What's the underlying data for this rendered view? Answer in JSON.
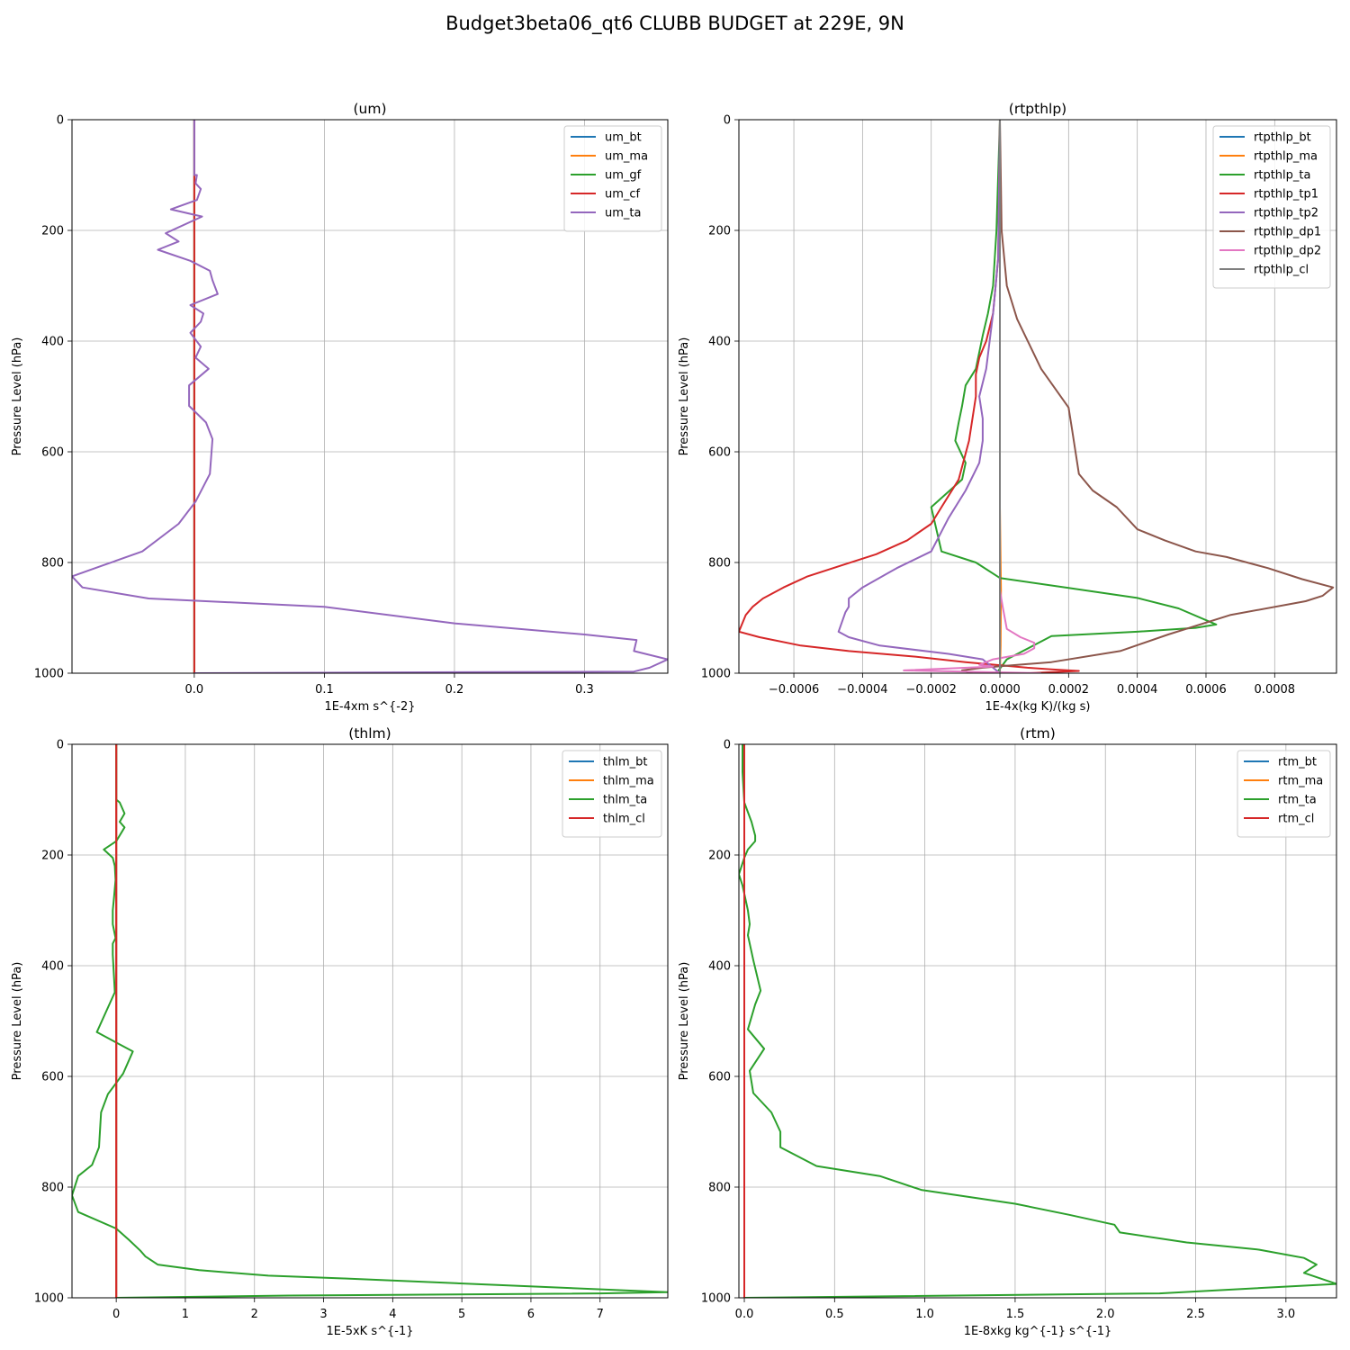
{
  "figure": {
    "title": "Budget3beta06_qt6 CLUBB BUDGET at 229E, 9N"
  },
  "chart_data": [
    {
      "type": "line",
      "title": "(um)",
      "xlabel": "1E-4xm s^{-2}",
      "ylabel": "Pressure Level (hPa)",
      "xlim": [
        -0.094,
        0.364
      ],
      "ylim": [
        1000,
        0
      ],
      "xticks": [
        0.0,
        0.1,
        0.2,
        0.3
      ],
      "xtick_labels": [
        "0.0",
        "0.1",
        "0.2",
        "0.3"
      ],
      "yticks": [
        0,
        200,
        400,
        600,
        800,
        1000
      ],
      "ytick_labels": [
        "0",
        "200",
        "400",
        "600",
        "800",
        "1000"
      ],
      "grid": true,
      "legend_position": "top-right",
      "colors": {
        "um_bt": "#1f77b4",
        "um_ma": "#ff7f0e",
        "um_gf": "#2ca02c",
        "um_cf": "#d62728",
        "um_ta": "#9467bd"
      },
      "series": [
        {
          "name": "um_bt",
          "x": [
            0,
            0
          ],
          "y": [
            0,
            1000
          ]
        },
        {
          "name": "um_ma",
          "x": [
            0,
            0
          ],
          "y": [
            0,
            1000
          ]
        },
        {
          "name": "um_gf",
          "x": [
            0,
            0
          ],
          "y": [
            0,
            1000
          ]
        },
        {
          "name": "um_cf",
          "x": [
            0,
            0
          ],
          "y": [
            0,
            1000
          ]
        },
        {
          "name": "um_ta",
          "x": [
            0.0,
            0.0,
            0.0,
            0.002,
            0.001,
            0.005,
            0.002,
            -0.018,
            0.006,
            -0.022,
            -0.012,
            -0.028,
            -0.003,
            0.012,
            0.014,
            0.018,
            -0.003,
            0.007,
            0.005,
            -0.003,
            0.005,
            0.001,
            0.011,
            -0.004,
            -0.004,
            0.009,
            0.014,
            0.012,
            0.001,
            -0.012,
            -0.04,
            -0.07,
            -0.094,
            -0.086,
            -0.035,
            0.1,
            0.2,
            0.3,
            0.34,
            0.338,
            0.364,
            0.35,
            0.338,
            0.0
          ],
          "y": [
            0,
            50,
            100,
            100,
            115,
            125,
            145,
            162,
            175,
            205,
            220,
            235,
            255,
            273,
            290,
            315,
            335,
            350,
            365,
            385,
            410,
            430,
            450,
            480,
            517,
            547,
            577,
            640,
            690,
            730,
            780,
            805,
            825,
            845,
            865,
            880,
            910,
            930,
            940,
            960,
            975,
            990,
            997,
            1000
          ]
        }
      ]
    },
    {
      "type": "line",
      "title": "(rtpthlp)",
      "xlabel": "1E-4x(kg K)/(kg s)",
      "ylabel": "Pressure Level (hPa)",
      "xlim": [
        -0.00076,
        0.00098
      ],
      "ylim": [
        1000,
        0
      ],
      "xticks": [
        -0.0006,
        -0.0004,
        -0.0002,
        0.0,
        0.0002,
        0.0004,
        0.0006,
        0.0008
      ],
      "xtick_labels": [
        "−0.0006",
        "−0.0004",
        "−0.0002",
        "0.0000",
        "0.0002",
        "0.0004",
        "0.0006",
        "0.0008"
      ],
      "yticks": [
        0,
        200,
        400,
        600,
        800,
        1000
      ],
      "ytick_labels": [
        "0",
        "200",
        "400",
        "600",
        "800",
        "1000"
      ],
      "grid": true,
      "legend_position": "top-right",
      "colors": {
        "rtpthlp_bt": "#1f77b4",
        "rtpthlp_ma": "#ff7f0e",
        "rtpthlp_ta": "#2ca02c",
        "rtpthlp_tp1": "#d62728",
        "rtpthlp_tp2": "#9467bd",
        "rtpthlp_dp1": "#8c564b",
        "rtpthlp_dp2": "#e377c2",
        "rtpthlp_cl": "#7f7f7f"
      },
      "series": [
        {
          "name": "rtpthlp_bt",
          "x": [
            0,
            0
          ],
          "y": [
            0,
            1000
          ]
        },
        {
          "name": "rtpthlp_ma",
          "x": [
            0,
            0,
            3e-06,
            2e-06,
            0
          ],
          "y": [
            0,
            700,
            850,
            950,
            1000
          ]
        },
        {
          "name": "rtpthlp_ta",
          "x": [
            0.0,
            -5e-06,
            -1e-05,
            -2e-05,
            -3.5e-05,
            -5e-05,
            -6e-05,
            -7e-05,
            -0.0001,
            -0.00011,
            -0.00012,
            -0.00013,
            -0.0001,
            -0.00011,
            -0.0002,
            -0.00017,
            -7e-05,
            0.0,
            0.0002,
            0.0004,
            0.00052,
            0.00063,
            0.00057,
            0.0004,
            0.00015,
            2e-05,
            -1e-05
          ],
          "y": [
            0,
            100,
            200,
            300,
            350,
            390,
            420,
            450,
            480,
            517,
            547,
            580,
            620,
            650,
            700,
            780,
            800,
            828,
            846,
            864,
            883,
            912,
            918,
            925,
            933,
            975,
            1000
          ]
        },
        {
          "name": "rtpthlp_tp1",
          "x": [
            0.0,
            -5e-06,
            -2e-05,
            -4e-05,
            -6e-05,
            -7e-05,
            -7e-05,
            -9e-05,
            -0.00012,
            -0.00017,
            -0.0002,
            -0.00027,
            -0.00036,
            -0.00046,
            -0.00056,
            -0.00063,
            -0.00069,
            -0.00072,
            -0.00074,
            -0.00076,
            -0.0007,
            -0.00058,
            -0.00044,
            -0.00025,
            -0.0001,
            8e-05,
            0.00015,
            0.00023,
            8e-05
          ],
          "y": [
            0,
            250,
            350,
            400,
            430,
            460,
            500,
            580,
            650,
            700,
            730,
            760,
            785,
            805,
            825,
            845,
            865,
            880,
            895,
            925,
            935,
            950,
            960,
            970,
            980,
            990,
            993,
            996,
            1000
          ]
        },
        {
          "name": "rtpthlp_tp2",
          "x": [
            0.0,
            -5e-06,
            -2e-05,
            -3e-05,
            -4e-05,
            -6e-05,
            -5e-05,
            -5e-05,
            -6e-05,
            -0.0001,
            -0.00015,
            -0.0002,
            -0.0003,
            -0.0004,
            -0.00044,
            -0.00044,
            -0.00045,
            -0.00047,
            -0.00044,
            -0.00035,
            -0.00015,
            -5e-05,
            0.0
          ],
          "y": [
            0,
            250,
            350,
            400,
            450,
            500,
            540,
            580,
            620,
            670,
            720,
            780,
            810,
            845,
            865,
            880,
            890,
            925,
            935,
            950,
            965,
            975,
            1000
          ]
        },
        {
          "name": "rtpthlp_dp1",
          "x": [
            0.0,
            5e-06,
            2e-05,
            5e-05,
            0.00012,
            0.0002,
            0.00021,
            0.00022,
            0.00023,
            0.00027,
            0.00034,
            0.0004,
            0.00048,
            0.00057,
            0.00066,
            0.00078,
            0.00088,
            0.00097,
            0.00094,
            0.00089,
            0.00067,
            0.00049,
            0.00035,
            0.00015,
            -5e-05,
            -0.00011,
            -8e-05
          ],
          "y": [
            0,
            200,
            300,
            360,
            450,
            520,
            560,
            600,
            640,
            670,
            700,
            740,
            760,
            780,
            790,
            810,
            830,
            845,
            860,
            870,
            895,
            930,
            960,
            980,
            990,
            995,
            1000
          ]
        },
        {
          "name": "rtpthlp_dp2",
          "x": [
            0.0,
            0.0,
            8e-06,
            2e-05,
            6e-05,
            0.0001,
            0.0001,
            7e-05,
            -2e-05,
            -6e-05,
            -2e-05,
            -0.00028,
            0.00012
          ],
          "y": [
            0,
            850,
            880,
            920,
            935,
            945,
            955,
            965,
            975,
            985,
            988,
            995,
            1000
          ]
        },
        {
          "name": "rtpthlp_cl",
          "x": [
            0,
            0
          ],
          "y": [
            0,
            1000
          ]
        }
      ]
    },
    {
      "type": "line",
      "title": "(thlm)",
      "xlabel": "1E-5xK s^{-1}",
      "ylabel": "Pressure Level (hPa)",
      "xlim": [
        -0.64,
        7.98
      ],
      "ylim": [
        1000,
        0
      ],
      "xticks": [
        0,
        1,
        2,
        3,
        4,
        5,
        6,
        7
      ],
      "xtick_labels": [
        "0",
        "1",
        "2",
        "3",
        "4",
        "5",
        "6",
        "7"
      ],
      "yticks": [
        0,
        200,
        400,
        600,
        800,
        1000
      ],
      "ytick_labels": [
        "0",
        "200",
        "400",
        "600",
        "800",
        "1000"
      ],
      "grid": true,
      "legend_position": "top-right",
      "colors": {
        "thlm_bt": "#1f77b4",
        "thlm_ma": "#ff7f0e",
        "thlm_ta": "#2ca02c",
        "thlm_cl": "#d62728"
      },
      "series": [
        {
          "name": "thlm_bt",
          "x": [
            0,
            0
          ],
          "y": [
            0,
            1000
          ]
        },
        {
          "name": "thlm_ma",
          "x": [
            0,
            0
          ],
          "y": [
            0,
            1000
          ]
        },
        {
          "name": "thlm_ta",
          "x": [
            0.0,
            0.0,
            0.05,
            0.12,
            0.05,
            0.12,
            0.0,
            -0.18,
            -0.05,
            -0.02,
            -0.01,
            -0.03,
            -0.05,
            -0.05,
            -0.01,
            -0.05,
            -0.05,
            -0.02,
            -0.28,
            0.24,
            0.1,
            -0.12,
            -0.22,
            -0.25,
            -0.35,
            -0.55,
            -0.64,
            -0.55,
            0.0,
            0.18,
            0.35,
            0.42,
            0.6,
            1.2,
            2.2,
            3.3,
            7.98,
            7.0,
            2.5,
            0.0
          ],
          "y": [
            0,
            100,
            105,
            125,
            140,
            150,
            175,
            190,
            205,
            220,
            245,
            275,
            300,
            325,
            350,
            360,
            380,
            448,
            520,
            555,
            595,
            632,
            665,
            728,
            760,
            780,
            815,
            845,
            875,
            895,
            915,
            925,
            940,
            950,
            960,
            965,
            990,
            992,
            996,
            1000
          ]
        },
        {
          "name": "thlm_cl",
          "x": [
            0,
            0
          ],
          "y": [
            0,
            1000
          ]
        }
      ]
    },
    {
      "type": "line",
      "title": "(rtm)",
      "xlabel": "1E-8xkg kg^{-1} s^{-1}",
      "ylabel": "Pressure Level (hPa)",
      "xlim": [
        -0.03,
        3.28
      ],
      "ylim": [
        1000,
        0
      ],
      "xticks": [
        0.0,
        0.5,
        1.0,
        1.5,
        2.0,
        2.5,
        3.0
      ],
      "xtick_labels": [
        "0.0",
        "0.5",
        "1.0",
        "1.5",
        "2.0",
        "2.5",
        "3.0"
      ],
      "yticks": [
        0,
        200,
        400,
        600,
        800,
        1000
      ],
      "ytick_labels": [
        "0",
        "200",
        "400",
        "600",
        "800",
        "1000"
      ],
      "grid": true,
      "legend_position": "top-right",
      "colors": {
        "rtm_bt": "#1f77b4",
        "rtm_ma": "#ff7f0e",
        "rtm_ta": "#2ca02c",
        "rtm_cl": "#d62728"
      },
      "series": [
        {
          "name": "rtm_bt",
          "x": [
            0,
            0
          ],
          "y": [
            0,
            1000
          ]
        },
        {
          "name": "rtm_ma",
          "x": [
            0,
            0
          ],
          "y": [
            0,
            1000
          ]
        },
        {
          "name": "rtm_ta",
          "x": [
            -0.01,
            -0.01,
            0.0,
            0.04,
            0.06,
            0.06,
            0.02,
            0.0,
            -0.03,
            -0.01,
            0.0,
            0.02,
            0.03,
            0.02,
            0.04,
            0.05,
            0.09,
            0.06,
            0.02,
            0.11,
            0.03,
            0.05,
            0.15,
            0.2,
            0.2,
            0.2,
            0.4,
            0.75,
            0.98,
            1.5,
            1.8,
            2.05,
            2.08,
            2.45,
            2.85,
            3.1,
            3.17,
            3.1,
            3.28,
            2.3,
            0.0
          ],
          "y": [
            0,
            50,
            105,
            140,
            165,
            175,
            190,
            205,
            235,
            255,
            270,
            300,
            325,
            345,
            375,
            390,
            445,
            470,
            515,
            550,
            590,
            630,
            665,
            700,
            720,
            728,
            762,
            780,
            805,
            830,
            850,
            868,
            882,
            900,
            913,
            928,
            940,
            955,
            975,
            992,
            1000
          ]
        },
        {
          "name": "rtm_cl",
          "x": [
            0,
            0
          ],
          "y": [
            0,
            1000
          ]
        }
      ]
    }
  ]
}
